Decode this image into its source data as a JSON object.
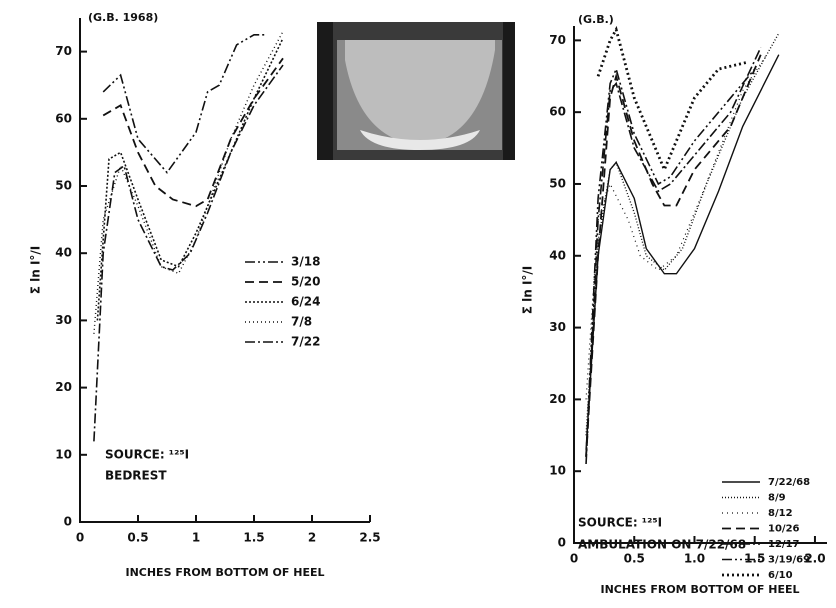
{
  "chart_data": [
    {
      "type": "line",
      "title": "(G.B. 1968)",
      "x_label": "INCHES FROM BOTTOM OF HEEL",
      "y_label": "Σ ln I°/I",
      "annotations": [
        "SOURCE: ¹²⁵I",
        "BEDREST"
      ],
      "xlim": [
        0,
        2.5
      ],
      "xticks": [
        0,
        0.5,
        1,
        1.5,
        2,
        2.5
      ],
      "ylim": [
        0,
        75
      ],
      "yticks": [
        0,
        10,
        20,
        30,
        40,
        50,
        60,
        70
      ],
      "series": [
        {
          "name": "3/18",
          "color": "#111111",
          "x": [
            0.2,
            0.35,
            0.5,
            0.75,
            1.0,
            1.1,
            1.2,
            1.35,
            1.5,
            1.6
          ],
          "values": [
            64,
            66.5,
            57,
            52,
            58,
            64,
            65,
            71,
            72.5,
            72.5
          ]
        },
        {
          "name": "5/20",
          "color": "#111111",
          "x": [
            0.2,
            0.35,
            0.5,
            0.65,
            0.8,
            1.0,
            1.1,
            1.3,
            1.5,
            1.75
          ],
          "values": [
            60.5,
            62,
            55,
            50,
            48,
            47,
            48,
            57,
            63,
            69
          ]
        },
        {
          "name": "6/24",
          "color": "#111111",
          "x": [
            0.15,
            0.25,
            0.35,
            0.5,
            0.7,
            0.85,
            1.0,
            1.3,
            1.5,
            1.75
          ],
          "values": [
            30,
            54,
            55,
            48,
            39,
            38,
            43,
            55,
            63,
            72
          ]
        },
        {
          "name": "7/8",
          "color": "#111111",
          "x": [
            0.12,
            0.2,
            0.35,
            0.5,
            0.7,
            0.85,
            1.0,
            1.3,
            1.5,
            1.75
          ],
          "values": [
            28,
            45,
            53,
            47,
            38,
            37,
            42,
            57,
            65,
            73
          ]
        },
        {
          "name": "7/22",
          "color": "#111111",
          "x": [
            0.12,
            0.2,
            0.3,
            0.38,
            0.5,
            0.7,
            0.8,
            0.95,
            1.1,
            1.3,
            1.5,
            1.75
          ],
          "values": [
            12,
            40,
            52,
            53,
            45,
            38,
            37.5,
            40,
            46,
            55,
            62,
            68
          ]
        }
      ]
    },
    {
      "type": "line",
      "title": "(G.B.)",
      "x_label": "INCHES FROM BOTTOM OF HEEL",
      "y_label": "Σ ln I°/I",
      "annotations": [
        "SOURCE: ¹²⁵I",
        "AMBULATION ON 7/22/68"
      ],
      "xlim": [
        0,
        2.1
      ],
      "xticks": [
        0,
        0.5,
        {
          "value": 1,
          "label": "1.0"
        },
        1.5,
        {
          "value": 2,
          "label": "2.0"
        }
      ],
      "ylim": [
        0,
        72
      ],
      "yticks": [
        0,
        10,
        20,
        30,
        40,
        50,
        60,
        70
      ],
      "series": [
        {
          "name": "7/22/68",
          "color": "#111111",
          "x": [
            0.1,
            0.2,
            0.3,
            0.35,
            0.5,
            0.6,
            0.75,
            0.85,
            1.0,
            1.2,
            1.4,
            1.7
          ],
          "values": [
            13,
            40,
            52,
            53,
            48,
            41,
            37.5,
            37.5,
            41,
            49,
            58,
            68
          ]
        },
        {
          "name": "8/9",
          "color": "#111111",
          "x": [
            0.1,
            0.2,
            0.3,
            0.35,
            0.5,
            0.6,
            0.75,
            0.9,
            1.1,
            1.4,
            1.7
          ],
          "values": [
            15,
            42,
            52,
            53,
            46,
            40,
            38,
            41,
            50,
            62,
            71
          ]
        },
        {
          "name": "8/12",
          "color": "#111111",
          "x": [
            0.1,
            0.2,
            0.3,
            0.45,
            0.55,
            0.7,
            0.85,
            1.05,
            1.4,
            1.6
          ],
          "values": [
            20,
            45,
            50,
            45,
            40,
            38,
            40,
            48,
            63,
            68
          ]
        },
        {
          "name": "10/26",
          "color": "#111111",
          "x": [
            0.1,
            0.2,
            0.3,
            0.35,
            0.5,
            0.65,
            0.75,
            0.85,
            1.0,
            1.3,
            1.55
          ],
          "values": [
            12,
            40,
            62,
            65,
            56,
            50,
            47,
            47,
            52,
            58,
            68
          ]
        },
        {
          "name": "12/17",
          "color": "#111111",
          "x": [
            0.1,
            0.2,
            0.3,
            0.35,
            0.5,
            0.7,
            0.8,
            1.0,
            1.3,
            1.55
          ],
          "values": [
            11,
            45,
            63,
            64,
            55,
            49,
            50,
            54,
            60,
            69
          ]
        },
        {
          "name": "3/19/69",
          "color": "#111111",
          "x": [
            0.1,
            0.2,
            0.3,
            0.35,
            0.5,
            0.7,
            0.8,
            1.0,
            1.3,
            1.5
          ],
          "values": [
            12,
            48,
            64,
            66,
            57,
            50,
            51,
            56,
            62,
            66
          ]
        },
        {
          "name": "6/10",
          "color": "#111111",
          "x": [
            0.2,
            0.3,
            0.35,
            0.5,
            0.65,
            0.75,
            0.85,
            1.0,
            1.2,
            1.45
          ],
          "values": [
            65,
            70,
            71.5,
            62,
            56,
            52,
            56,
            62,
            66,
            67
          ]
        }
      ]
    }
  ]
}
